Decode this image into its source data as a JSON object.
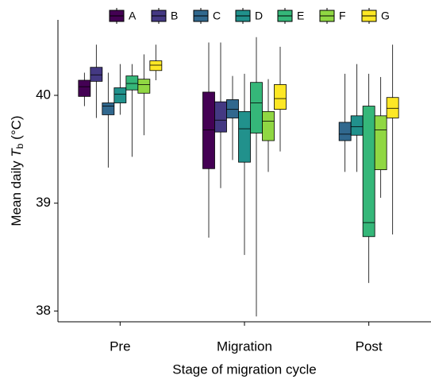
{
  "chart_data": {
    "type": "boxplot",
    "ylabel": [
      "Mean daily ",
      "T",
      "b",
      " (°C)"
    ],
    "xlabel": "Stage of migration cycle",
    "categories": [
      "Pre",
      "Migration",
      "Post"
    ],
    "ylim": [
      37.9,
      40.7
    ],
    "yticks": [
      38,
      39,
      40
    ],
    "grid": false,
    "legend": "top",
    "series": [
      {
        "name": "A",
        "color": "#440154",
        "values": [
          [
            39.9,
            39.99,
            40.08,
            40.14,
            40.21
          ],
          [
            38.68,
            39.32,
            39.68,
            40.03,
            40.49
          ],
          null
        ]
      },
      {
        "name": "B",
        "color": "#443983",
        "values": [
          [
            39.79,
            40.13,
            40.19,
            40.26,
            40.47
          ],
          [
            39.14,
            39.66,
            39.77,
            39.94,
            40.49
          ],
          null
        ]
      },
      {
        "name": "C",
        "color": "#31688e",
        "values": [
          [
            39.33,
            39.82,
            39.9,
            39.93,
            40.21
          ],
          [
            39.4,
            39.79,
            39.87,
            39.96,
            40.18
          ],
          [
            39.29,
            39.58,
            39.64,
            39.75,
            40.2
          ]
        ]
      },
      {
        "name": "D",
        "color": "#21918c",
        "values": [
          [
            39.82,
            39.93,
            40.01,
            40.07,
            40.29
          ],
          [
            38.52,
            39.38,
            39.69,
            39.85,
            40.2
          ],
          [
            39.29,
            39.63,
            39.71,
            39.81,
            40.29
          ]
        ]
      },
      {
        "name": "E",
        "color": "#35b779",
        "values": [
          [
            39.43,
            40.05,
            40.11,
            40.18,
            40.29
          ],
          [
            37.95,
            39.65,
            39.93,
            40.12,
            40.54
          ],
          [
            38.26,
            38.69,
            38.82,
            39.9,
            40.2
          ]
        ]
      },
      {
        "name": "F",
        "color": "#90d743",
        "values": [
          [
            39.63,
            40.02,
            40.1,
            40.15,
            40.38
          ],
          [
            39.29,
            39.58,
            39.76,
            39.85,
            40.15
          ],
          [
            39.05,
            39.31,
            39.68,
            39.81,
            40.17
          ]
        ]
      },
      {
        "name": "G",
        "color": "#fde725",
        "values": [
          [
            40.14,
            40.23,
            40.28,
            40.32,
            40.47
          ],
          [
            39.48,
            39.87,
            39.97,
            40.1,
            40.45
          ],
          [
            38.71,
            39.79,
            39.88,
            39.98,
            40.47
          ]
        ]
      }
    ]
  }
}
